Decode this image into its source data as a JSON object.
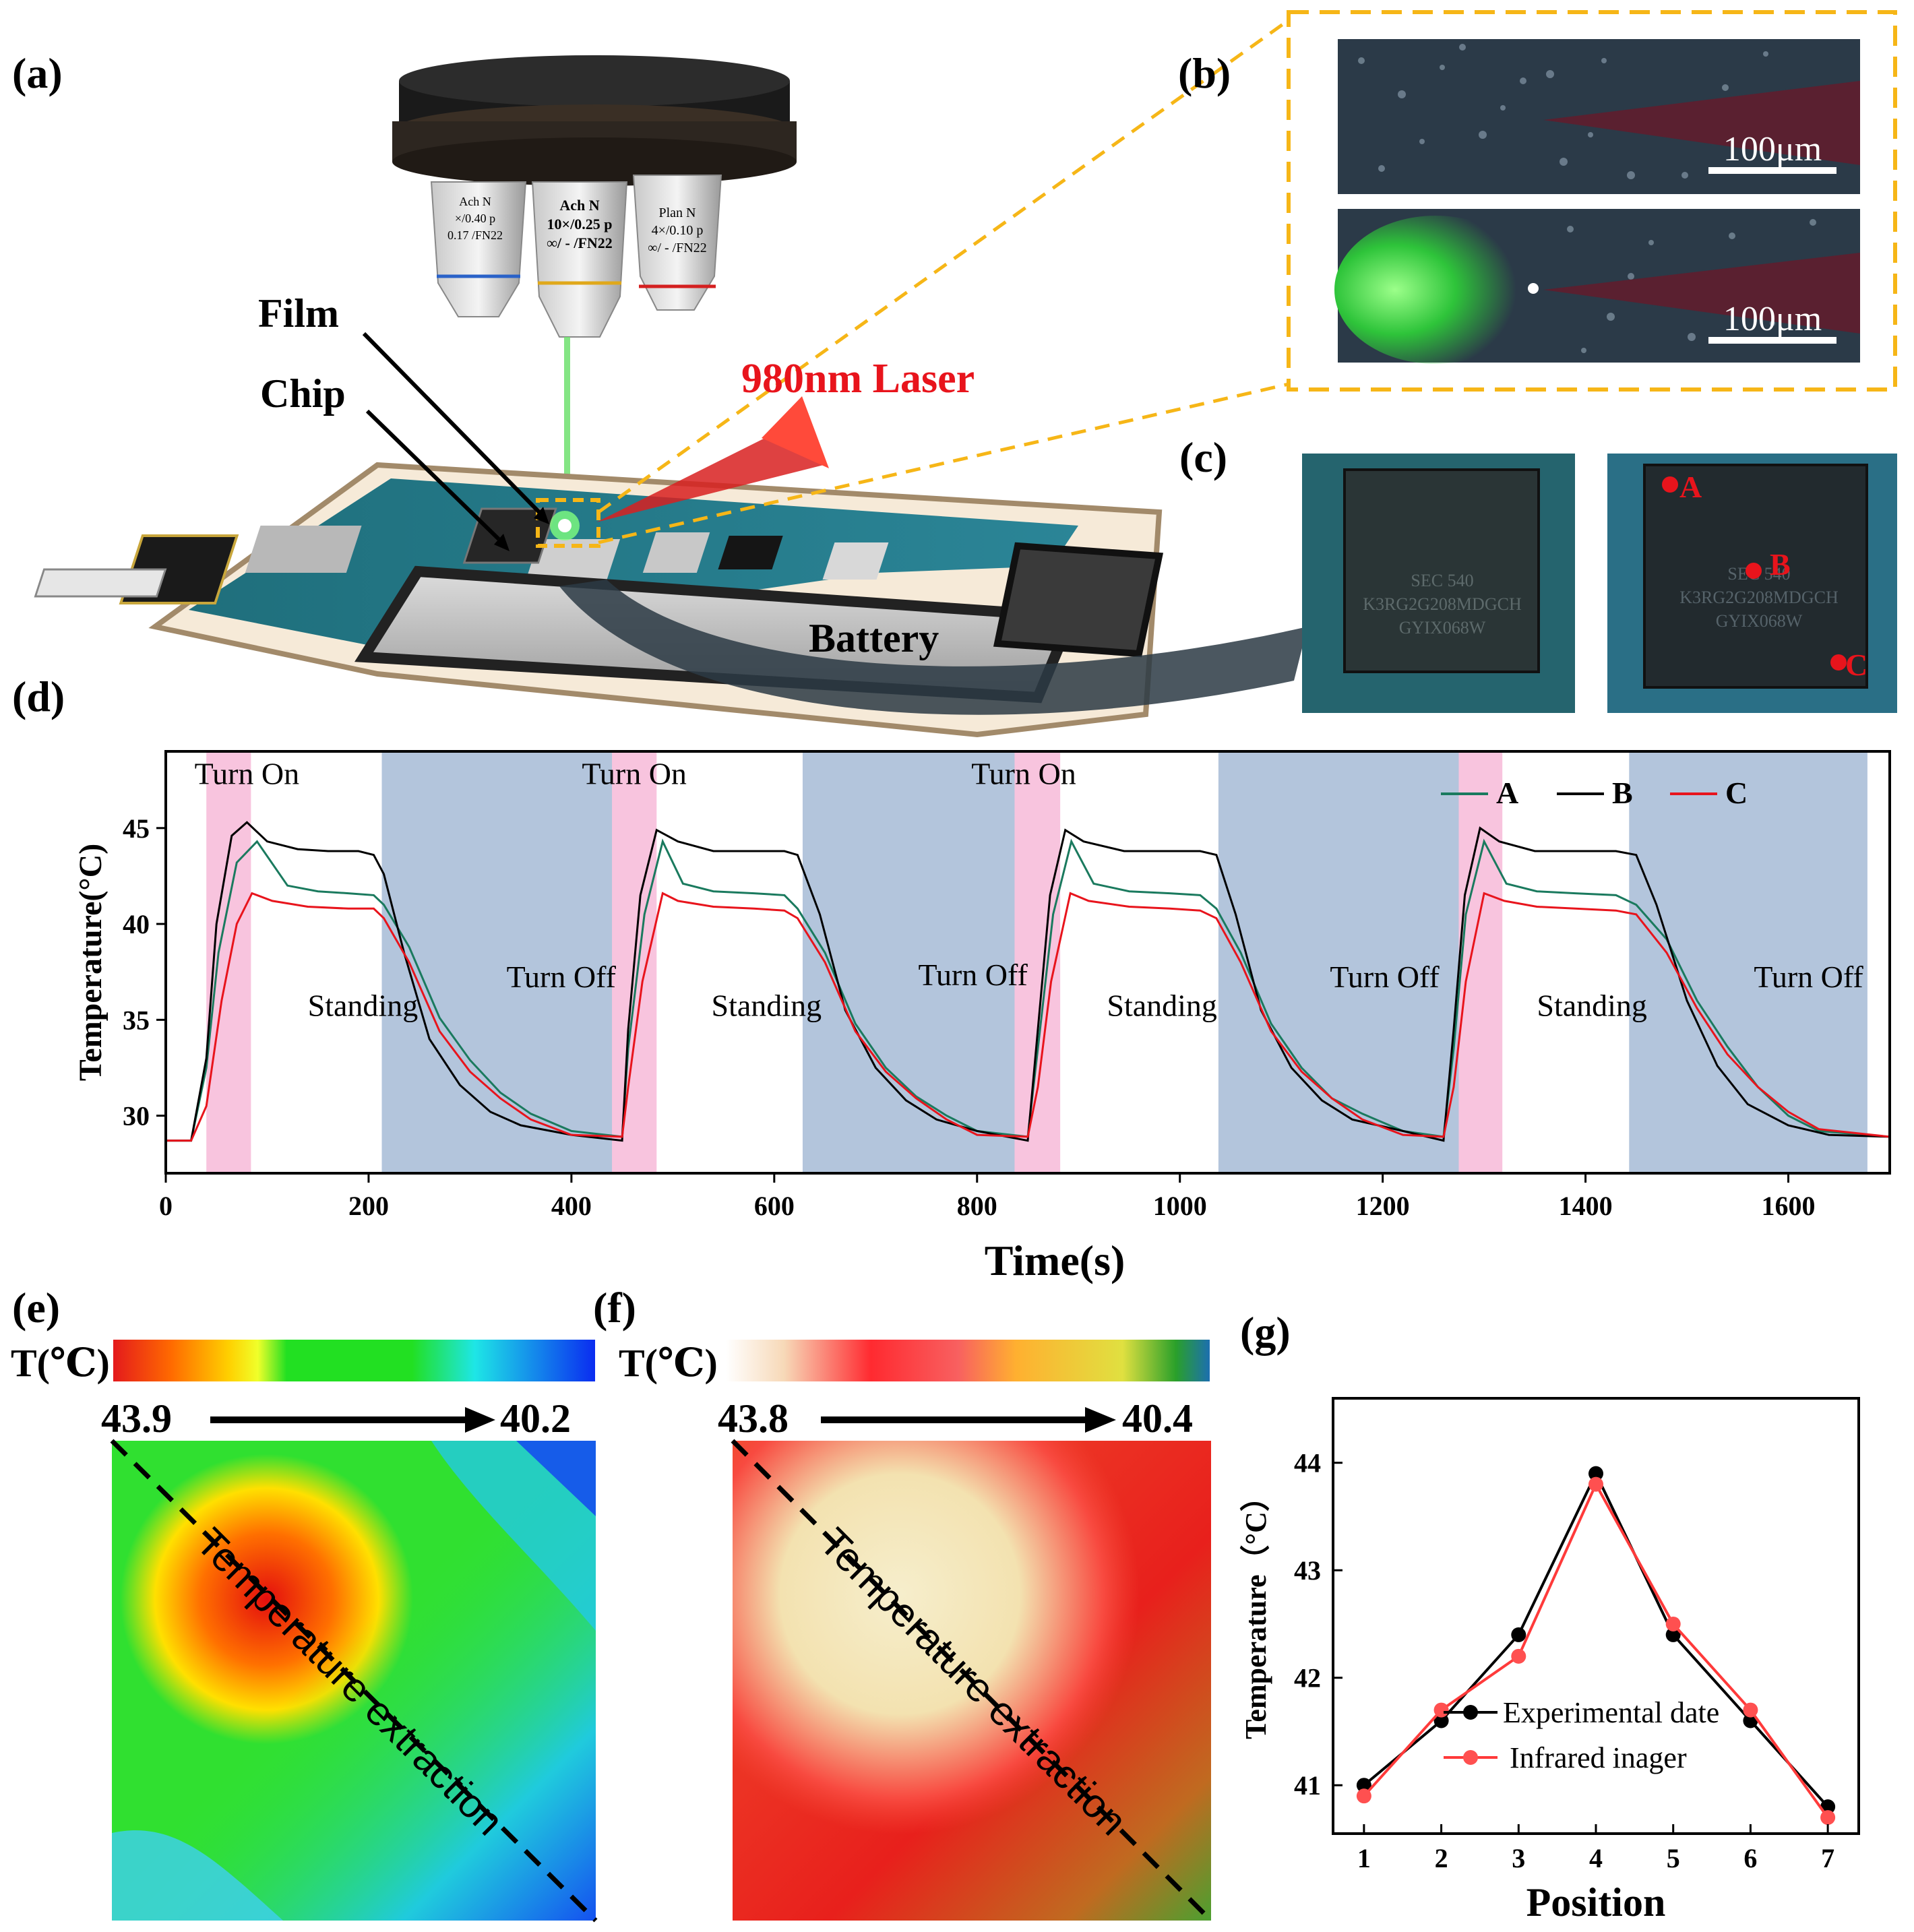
{
  "panel_labels": {
    "a": "(a)",
    "b": "(b)",
    "c": "(c)",
    "d": "(d)",
    "e": "(e)",
    "f": "(f)",
    "g": "(g)"
  },
  "panel_a": {
    "film_label": "Film",
    "chip_label": "Chip",
    "laser_label": "980nm Laser",
    "battery_label": "Battery",
    "objectives": [
      {
        "line1": "Ach N",
        "line2": "×/0.40 p",
        "line3": "0.17 /FN22"
      },
      {
        "line1": "Ach N",
        "line2": "10×/0.25 p",
        "line3": "∞/ - /FN22"
      },
      {
        "line1": "Plan N",
        "line2": "4×/0.10 p",
        "line3": "∞/ - /FN22"
      }
    ],
    "chip_markings": {
      "line1": "SEC 540",
      "line2": "K3RG2G208MDGCH",
      "line3": "GYIX068W"
    }
  },
  "panel_b": {
    "scalebar_top": "100μm",
    "scalebar_bottom": "100μm"
  },
  "panel_c": {
    "points": [
      "A",
      "B",
      "C"
    ]
  },
  "panel_e": {
    "colorbar_label": "T(℃)",
    "max_label": "43.9",
    "min_label": "40.2",
    "extraction_label": "Temperature extraction"
  },
  "panel_f": {
    "colorbar_label": "T(℃)",
    "max_label": "43.8",
    "min_label": "40.4",
    "extraction_label": "Temperature extraction"
  },
  "colors": {
    "accent_yellow": "#f6b617",
    "laser_red": "#e8141c",
    "off_band": "#b3c5dc",
    "on_band": "#f8c4de",
    "series_A": "#1a7a5e",
    "series_B": "#000000",
    "series_C": "#e8141c"
  },
  "chart_data": [
    {
      "id": "d",
      "type": "line",
      "xlabel": "Time(s)",
      "ylabel": "Temperature(°C)",
      "xlim": [
        0,
        1700
      ],
      "ylim": [
        27,
        49
      ],
      "xticks": [
        0,
        200,
        400,
        600,
        800,
        1000,
        1200,
        1400,
        1600
      ],
      "yticks": [
        30,
        35,
        40,
        45
      ],
      "legend": [
        "A",
        "B",
        "C"
      ],
      "annotations": [
        {
          "text": "Turn On",
          "x": 80,
          "y": 47.3
        },
        {
          "text": "Turn On",
          "x": 462,
          "y": 47.3
        },
        {
          "text": "Turn On",
          "x": 846,
          "y": 47.3
        },
        {
          "text": "Standing",
          "x": 140,
          "y": 35.2
        },
        {
          "text": "Standing",
          "x": 538,
          "y": 35.2
        },
        {
          "text": "Standing",
          "x": 928,
          "y": 35.2
        },
        {
          "text": "Standing",
          "x": 1352,
          "y": 35.2
        },
        {
          "text": "Turn Off",
          "x": 336,
          "y": 36.7
        },
        {
          "text": "Turn Off",
          "x": 742,
          "y": 36.8
        },
        {
          "text": "Turn Off",
          "x": 1148,
          "y": 36.7
        },
        {
          "text": "Turn Off",
          "x": 1566,
          "y": 36.7
        }
      ],
      "on_bands": [
        [
          40,
          84
        ],
        [
          440,
          484
        ],
        [
          837,
          882
        ],
        [
          1275,
          1318
        ]
      ],
      "off_bands": [
        [
          213,
          450
        ],
        [
          628,
          860
        ],
        [
          1038,
          1275
        ],
        [
          1443,
          1678
        ]
      ],
      "series": [
        {
          "name": "A",
          "x": [
            0,
            25,
            40,
            52,
            70,
            90,
            120,
            150,
            180,
            205,
            215,
            240,
            270,
            300,
            330,
            360,
            400,
            450,
            456,
            472,
            490,
            510,
            540,
            580,
            610,
            623,
            650,
            680,
            710,
            740,
            770,
            800,
            850,
            860,
            875,
            893,
            915,
            950,
            990,
            1020,
            1036,
            1060,
            1090,
            1120,
            1150,
            1180,
            1220,
            1260,
            1270,
            1282,
            1300,
            1322,
            1352,
            1390,
            1430,
            1450,
            1480,
            1510,
            1540,
            1570,
            1600,
            1630,
            1700
          ],
          "y": [
            28.7,
            28.7,
            32.5,
            38.5,
            43.2,
            44.3,
            42.0,
            41.7,
            41.6,
            41.5,
            41.0,
            38.8,
            35.1,
            32.9,
            31.2,
            30.1,
            29.2,
            28.9,
            33.5,
            40.5,
            44.3,
            42.1,
            41.7,
            41.6,
            41.5,
            40.8,
            38.5,
            34.8,
            32.5,
            31.0,
            30.0,
            29.2,
            28.9,
            33.5,
            40.5,
            44.3,
            42.1,
            41.7,
            41.6,
            41.5,
            40.8,
            38.5,
            34.8,
            32.5,
            30.9,
            30.1,
            29.2,
            28.9,
            33.5,
            40.5,
            44.3,
            42.1,
            41.7,
            41.6,
            41.5,
            41.0,
            39.2,
            36.0,
            33.6,
            31.5,
            30.0,
            29.2,
            28.9
          ]
        },
        {
          "name": "B",
          "x": [
            0,
            25,
            40,
            50,
            65,
            80,
            100,
            130,
            160,
            190,
            205,
            215,
            235,
            260,
            290,
            320,
            350,
            400,
            450,
            456,
            468,
            484,
            505,
            540,
            580,
            610,
            623,
            645,
            670,
            700,
            730,
            760,
            800,
            850,
            860,
            872,
            887,
            905,
            945,
            985,
            1020,
            1036,
            1055,
            1080,
            1110,
            1140,
            1170,
            1220,
            1260,
            1270,
            1281,
            1296,
            1315,
            1350,
            1390,
            1430,
            1450,
            1470,
            1500,
            1530,
            1560,
            1600,
            1640,
            1700
          ],
          "y": [
            28.7,
            28.7,
            33.0,
            40.0,
            44.6,
            45.3,
            44.3,
            43.9,
            43.8,
            43.8,
            43.6,
            42.6,
            38.5,
            34.0,
            31.6,
            30.2,
            29.5,
            29.0,
            28.7,
            34.5,
            41.5,
            44.9,
            44.3,
            43.8,
            43.8,
            43.8,
            43.6,
            40.5,
            35.5,
            32.5,
            30.8,
            29.8,
            29.2,
            28.7,
            34.5,
            41.5,
            44.9,
            44.3,
            43.8,
            43.8,
            43.8,
            43.6,
            40.5,
            35.5,
            32.5,
            30.8,
            29.8,
            29.2,
            28.7,
            34.5,
            41.5,
            45.0,
            44.3,
            43.8,
            43.8,
            43.8,
            43.6,
            41.0,
            36.0,
            32.6,
            30.6,
            29.5,
            29.0,
            28.9
          ]
        },
        {
          "name": "C",
          "x": [
            0,
            25,
            40,
            55,
            70,
            85,
            105,
            140,
            180,
            205,
            215,
            240,
            270,
            300,
            330,
            360,
            400,
            450,
            456,
            470,
            490,
            505,
            540,
            580,
            610,
            623,
            650,
            680,
            710,
            740,
            770,
            800,
            850,
            860,
            873,
            892,
            910,
            950,
            990,
            1020,
            1036,
            1060,
            1090,
            1120,
            1150,
            1180,
            1220,
            1260,
            1270,
            1282,
            1300,
            1320,
            1352,
            1390,
            1430,
            1450,
            1480,
            1510,
            1540,
            1570,
            1600,
            1630,
            1700
          ],
          "y": [
            28.7,
            28.7,
            30.5,
            36.0,
            40.0,
            41.6,
            41.2,
            40.9,
            40.8,
            40.8,
            40.3,
            38.0,
            34.4,
            32.3,
            30.9,
            29.8,
            29.0,
            28.9,
            31.5,
            37.0,
            41.6,
            41.2,
            40.9,
            40.8,
            40.7,
            40.3,
            38.0,
            34.4,
            32.3,
            30.9,
            29.8,
            29.0,
            28.9,
            31.5,
            37.0,
            41.6,
            41.2,
            40.9,
            40.8,
            40.7,
            40.3,
            38.0,
            34.4,
            32.3,
            30.9,
            29.8,
            29.0,
            28.9,
            31.5,
            37.0,
            41.6,
            41.2,
            40.9,
            40.8,
            40.7,
            40.5,
            38.5,
            35.6,
            33.2,
            31.5,
            30.2,
            29.3,
            28.9
          ]
        }
      ]
    },
    {
      "id": "g",
      "type": "line",
      "xlabel": "Position",
      "ylabel": "Temperature（°C）",
      "xlim": [
        0.6,
        7.4
      ],
      "ylim": [
        40.55,
        44.6
      ],
      "xticks": [
        1,
        2,
        3,
        4,
        5,
        6,
        7
      ],
      "yticks": [
        41,
        42,
        43,
        44
      ],
      "series": [
        {
          "name": "Experimental date",
          "x": [
            1,
            2,
            3,
            4,
            5,
            6,
            7
          ],
          "y": [
            41.0,
            41.6,
            42.4,
            43.9,
            42.4,
            41.6,
            40.8
          ]
        },
        {
          "name": "Infrared inager",
          "x": [
            1,
            2,
            3,
            4,
            5,
            6,
            7
          ],
          "y": [
            40.9,
            41.7,
            42.2,
            43.8,
            42.5,
            41.7,
            40.7
          ]
        }
      ]
    }
  ]
}
